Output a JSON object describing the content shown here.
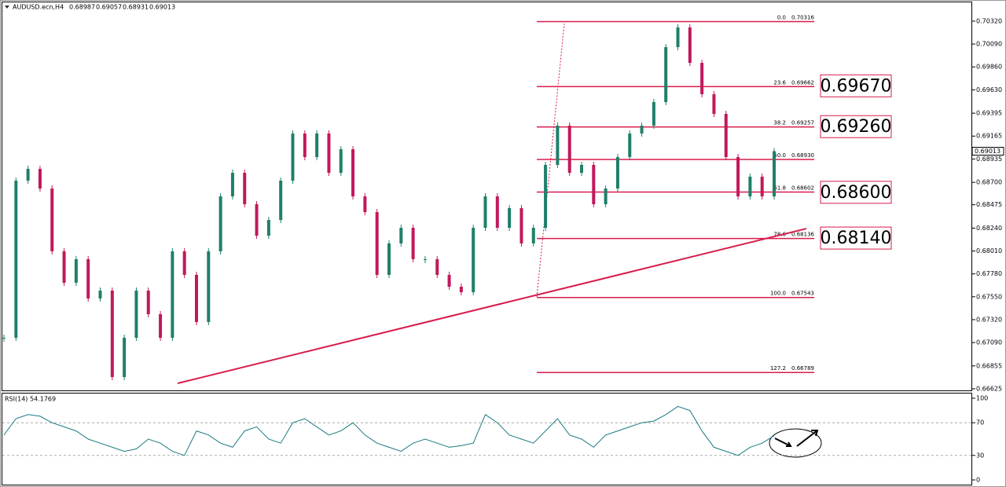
{
  "chart_data": {
    "type": "candlestick",
    "header": {
      "symbol": "AUDUSD.ecn,H4",
      "open": 0.68987,
      "high": 0.69057,
      "low": 0.68931,
      "close": 0.69013
    },
    "up_color": "#1f7f6a",
    "down_color": "#c2185b",
    "values": [
      0.67138,
      0.68717,
      0.68836,
      0.68638,
      0.68007,
      0.67691,
      0.67928,
      0.67533,
      0.67612,
      0.66743,
      0.67138,
      0.67612,
      0.67375,
      0.67138,
      0.68007,
      0.6777,
      0.67296,
      0.68007,
      0.68559,
      0.68796,
      0.6848,
      0.68164,
      0.68322,
      0.68717,
      0.69191,
      0.68954,
      0.69191,
      0.68796,
      0.69033,
      0.68559,
      0.68401,
      0.6777,
      0.68086,
      0.68243,
      0.67928,
      0.67928,
      0.6777,
      0.67651,
      0.67596,
      0.68243,
      0.68559,
      0.68243,
      0.68441,
      0.68086,
      0.68243,
      0.68875,
      0.6927,
      0.68796,
      0.68875,
      0.6848,
      0.68638,
      0.68954,
      0.69191,
      0.6927,
      0.69507,
      0.70059,
      0.70257,
      0.69901,
      0.69586,
      0.69388,
      0.68954,
      0.68559,
      0.68757,
      0.68559,
      0.69013
    ],
    "ylim": [
      0.66609,
      0.70517
    ],
    "yticks": [
      {
        "value": 0.7032,
        "label": "0.70320"
      },
      {
        "value": 0.7009,
        "label": "0.70090"
      },
      {
        "value": 0.6986,
        "label": "0.69860"
      },
      {
        "value": 0.6963,
        "label": "0.69630"
      },
      0.69395,
      0.69165,
      0.68935,
      {
        "value": 0.687,
        "label": "0.68700"
      },
      0.68475,
      {
        "value": 0.6824,
        "label": "0.68240"
      },
      {
        "value": 0.6801,
        "label": "0.68010"
      },
      {
        "value": 0.6778,
        "label": "0.67780"
      },
      {
        "value": 0.6755,
        "label": "0.67550"
      },
      {
        "value": 0.6732,
        "label": "0.67320"
      },
      {
        "value": 0.6709,
        "label": "0.67090"
      },
      0.66855,
      0.66625
    ],
    "fib_color": "#d81b4a",
    "fib_levels": [
      {
        "ratio": "0.0",
        "price": 0.70316
      },
      {
        "ratio": "23.6",
        "price": 0.69662
      },
      {
        "ratio": "38.2",
        "price": 0.69257
      },
      {
        "ratio": "50.0",
        "price": {
          "value": 0.6893,
          "label": "0.68930"
        }
      },
      {
        "ratio": "61.8",
        "price": 0.68602
      },
      {
        "ratio": "78.6",
        "price": 0.68136
      },
      {
        "ratio": "100.0",
        "price": 0.67543
      },
      {
        "ratio": "127.2",
        "price": 0.66789
      }
    ],
    "annotations": [
      {
        "value": 0.6967,
        "label": "0.69670"
      },
      {
        "value": 0.6926,
        "label": "0.69260"
      },
      {
        "value": 0.686,
        "label": "0.68600"
      },
      {
        "value": 0.6814,
        "label": "0.68140"
      }
    ],
    "trendline": {
      "from": 0.6668,
      "to": 0.68235
    },
    "rsi": {
      "name": "RSI(14)",
      "color": "#1a7a80",
      "ylim": [
        0,
        100
      ],
      "yticks": [
        100,
        70,
        30,
        0
      ],
      "levels": [
        70,
        30
      ],
      "values": [
        55,
        75,
        80,
        78,
        70,
        65,
        60,
        50,
        45,
        40,
        35,
        38,
        50,
        45,
        35,
        30,
        60,
        55,
        45,
        40,
        60,
        65,
        50,
        45,
        70,
        75,
        65,
        55,
        60,
        70,
        55,
        45,
        40,
        35,
        45,
        50,
        45,
        40,
        42,
        45,
        80,
        70,
        55,
        50,
        45,
        60,
        75,
        55,
        50,
        40,
        55,
        60,
        65,
        70,
        72,
        80,
        90,
        85,
        60,
        40,
        35,
        30,
        40,
        45,
        54.1769
      ]
    }
  }
}
